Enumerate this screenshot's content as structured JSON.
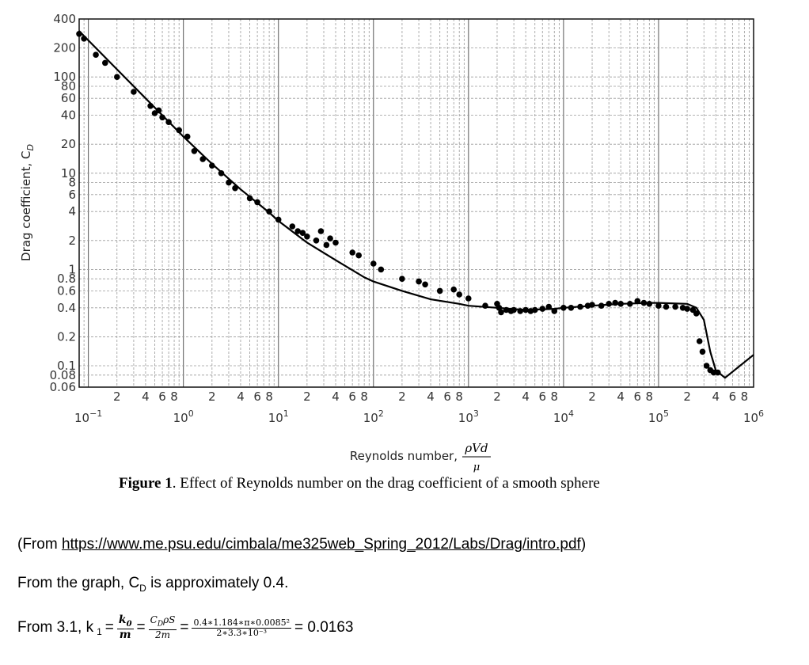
{
  "chart_data": {
    "type": "scatter",
    "title": "",
    "xlabel": "Reynolds number,",
    "xlabel_formula": {
      "num": "ρVd",
      "den": "μ"
    },
    "ylabel": "Drag coefficient, C",
    "ylabel_sub": "D",
    "xscale": "log",
    "yscale": "log",
    "xlim": [
      0.08,
      1000000
    ],
    "ylim": [
      0.06,
      400
    ],
    "grid": true,
    "y_ticks": [
      "400",
      "200",
      "100",
      "80",
      "60",
      "40",
      "20",
      "10",
      "8",
      "6",
      "4",
      "2",
      "1",
      "0.8",
      "0.6",
      "0.4",
      "0.2",
      "0.1",
      "0.08",
      "0.06"
    ],
    "y_tick_values": [
      400,
      200,
      100,
      80,
      60,
      40,
      20,
      10,
      8,
      6,
      4,
      2,
      1,
      0.8,
      0.6,
      0.4,
      0.2,
      0.1,
      0.08,
      0.06
    ],
    "x_decade_labels": [
      {
        "base": "10",
        "exp": "−1",
        "value": 0.1
      },
      {
        "base": "10",
        "exp": "0",
        "value": 1
      },
      {
        "base": "10",
        "exp": "1",
        "value": 10
      },
      {
        "base": "10",
        "exp": "2",
        "value": 100
      },
      {
        "base": "10",
        "exp": "3",
        "value": 1000
      },
      {
        "base": "10",
        "exp": "4",
        "value": 10000
      },
      {
        "base": "10",
        "exp": "5",
        "value": 100000
      },
      {
        "base": "10",
        "exp": "6",
        "value": 1000000
      }
    ],
    "x_minor_labels": [
      "2",
      "4",
      "6",
      "8"
    ],
    "series": [
      {
        "kind": "curve",
        "x": [
          0.08,
          0.1,
          0.2,
          0.4,
          0.8,
          1,
          2,
          4,
          8,
          10,
          20,
          40,
          80,
          100,
          200,
          400,
          800,
          1000,
          2000,
          4000,
          8000,
          10000,
          20000,
          40000,
          80000,
          100000,
          200000,
          250000,
          300000,
          350000,
          400000,
          500000,
          1000000
        ],
        "y": [
          300,
          240,
          120,
          60,
          30,
          24,
          12.5,
          6.8,
          3.9,
          3.2,
          1.9,
          1.25,
          0.83,
          0.75,
          0.6,
          0.49,
          0.44,
          0.42,
          0.4,
          0.38,
          0.39,
          0.4,
          0.42,
          0.44,
          0.45,
          0.45,
          0.44,
          0.4,
          0.3,
          0.14,
          0.09,
          0.075,
          0.13
        ]
      },
      {
        "kind": "points",
        "x": [
          0.08,
          0.09,
          0.12,
          0.15,
          0.2,
          0.3,
          0.45,
          0.5,
          0.55,
          0.6,
          0.7,
          0.9,
          1.1,
          1.3,
          1.6,
          2,
          2.5,
          3,
          3.5,
          5,
          6,
          8,
          10,
          14,
          16,
          18,
          20,
          25,
          28,
          32,
          35,
          40,
          60,
          70,
          100,
          120,
          200,
          300,
          350,
          500,
          700,
          800,
          1000,
          1500,
          2000,
          2100,
          2200,
          2500,
          2800,
          3000,
          3500,
          4000,
          4500,
          5000,
          6000,
          7000,
          8000,
          10000,
          12000,
          15000,
          18000,
          20000,
          25000,
          30000,
          35000,
          40000,
          50000,
          60000,
          70000,
          80000,
          100000,
          120000,
          150000,
          180000,
          200000,
          230000,
          250000,
          270000,
          290000,
          320000,
          350000,
          380000,
          420000
        ],
        "y": [
          280,
          250,
          170,
          140,
          100,
          70,
          50,
          42,
          45,
          38,
          34,
          28,
          24,
          17,
          14,
          12,
          10,
          8,
          7,
          5.5,
          5,
          4,
          3.3,
          2.8,
          2.5,
          2.4,
          2.2,
          2,
          2.5,
          1.8,
          2.1,
          1.9,
          1.5,
          1.4,
          1.15,
          1.0,
          0.8,
          0.75,
          0.7,
          0.6,
          0.62,
          0.55,
          0.5,
          0.42,
          0.44,
          0.4,
          0.36,
          0.38,
          0.37,
          0.38,
          0.37,
          0.38,
          0.37,
          0.38,
          0.39,
          0.41,
          0.37,
          0.4,
          0.4,
          0.41,
          0.42,
          0.43,
          0.42,
          0.44,
          0.45,
          0.44,
          0.44,
          0.47,
          0.45,
          0.44,
          0.42,
          0.41,
          0.41,
          0.4,
          0.39,
          0.38,
          0.35,
          0.18,
          0.14,
          0.1,
          0.09,
          0.085,
          0.085
        ]
      }
    ]
  },
  "caption": {
    "label": "Figure 1",
    "text": ". Effect of Reynolds number on the drag coefficient of a smooth sphere"
  },
  "source": {
    "prefix": "(From ",
    "url": "https://www.me.psu.edu/cimbala/me325web_Spring_2012/Labs/Drag/intro.pdf",
    "suffix": ")"
  },
  "statement": {
    "prefix": "From the graph, C",
    "sub": "D",
    "suffix": " is approximately 0.4."
  },
  "equation": {
    "prefix": "From 3.1, k",
    "k_sub": "1",
    "eq1": "=",
    "frac1_num_main": "k",
    "frac1_num_sub": "0",
    "frac1_den": "m",
    "eq2": "=",
    "frac2_num": "C",
    "frac2_num_sub": "D",
    "frac2_num_rest": "ρS",
    "frac2_den": "2m",
    "eq3": "=",
    "frac3_num": "0.4∗1.184∗π∗0.0085²",
    "frac3_den": "2∗3.3∗10⁻³",
    "result": "= 0.0163"
  }
}
